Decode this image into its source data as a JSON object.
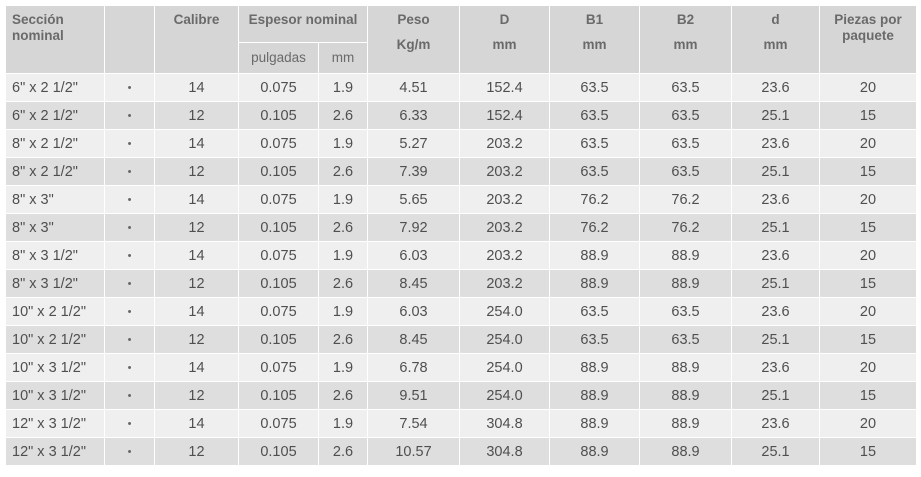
{
  "headers": {
    "seccion": "Sección nominal",
    "calibre": "Calibre",
    "espesor": "Espesor nominal",
    "pulgadas": "pulgadas",
    "mm": "mm",
    "peso": "Peso",
    "peso_unit": "Kg/m",
    "d_upper": "D",
    "d_upper_unit": "mm",
    "b1": "B1",
    "b1_unit": "mm",
    "b2": "B2",
    "b2_unit": "mm",
    "d_lower": "d",
    "d_lower_unit": "mm",
    "piezas": "Piezas por paquete"
  },
  "rows": [
    {
      "seccion": "6\" x 2 1/2\"",
      "marker": "•",
      "calibre": "14",
      "pulgadas": "0.075",
      "mm": "1.9",
      "peso": "4.51",
      "D": "152.4",
      "B1": "63.5",
      "B2": "63.5",
      "d": "23.6",
      "piezas": "20"
    },
    {
      "seccion": "6\" x 2 1/2\"",
      "marker": "•",
      "calibre": "12",
      "pulgadas": "0.105",
      "mm": "2.6",
      "peso": "6.33",
      "D": "152.4",
      "B1": "63.5",
      "B2": "63.5",
      "d": "25.1",
      "piezas": "15"
    },
    {
      "seccion": "8\" x 2 1/2\"",
      "marker": "•",
      "calibre": "14",
      "pulgadas": "0.075",
      "mm": "1.9",
      "peso": "5.27",
      "D": "203.2",
      "B1": "63.5",
      "B2": "63.5",
      "d": "23.6",
      "piezas": "20"
    },
    {
      "seccion": "8\" x 2 1/2\"",
      "marker": "•",
      "calibre": "12",
      "pulgadas": "0.105",
      "mm": "2.6",
      "peso": "7.39",
      "D": "203.2",
      "B1": "63.5",
      "B2": "63.5",
      "d": "25.1",
      "piezas": "15"
    },
    {
      "seccion": "8\" x 3\"",
      "marker": "•",
      "calibre": "14",
      "pulgadas": "0.075",
      "mm": "1.9",
      "peso": "5.65",
      "D": "203.2",
      "B1": "76.2",
      "B2": "76.2",
      "d": "23.6",
      "piezas": "20"
    },
    {
      "seccion": "8\" x 3\"",
      "marker": "•",
      "calibre": "12",
      "pulgadas": "0.105",
      "mm": "2.6",
      "peso": "7.92",
      "D": "203.2",
      "B1": "76.2",
      "B2": "76.2",
      "d": "25.1",
      "piezas": "15"
    },
    {
      "seccion": "8\" x 3 1/2\"",
      "marker": "•",
      "calibre": "14",
      "pulgadas": "0.075",
      "mm": "1.9",
      "peso": "6.03",
      "D": "203.2",
      "B1": "88.9",
      "B2": "88.9",
      "d": "23.6",
      "piezas": "20"
    },
    {
      "seccion": "8\" x 3 1/2\"",
      "marker": "•",
      "calibre": "12",
      "pulgadas": "0.105",
      "mm": "2.6",
      "peso": "8.45",
      "D": "203.2",
      "B1": "88.9",
      "B2": "88.9",
      "d": "25.1",
      "piezas": "15"
    },
    {
      "seccion": "10\" x 2 1/2\"",
      "marker": "•",
      "calibre": "14",
      "pulgadas": "0.075",
      "mm": "1.9",
      "peso": "6.03",
      "D": "254.0",
      "B1": "63.5",
      "B2": "63.5",
      "d": "23.6",
      "piezas": "20"
    },
    {
      "seccion": "10\" x 2 1/2\"",
      "marker": "•",
      "calibre": "12",
      "pulgadas": "0.105",
      "mm": "2.6",
      "peso": "8.45",
      "D": "254.0",
      "B1": "63.5",
      "B2": "63.5",
      "d": "25.1",
      "piezas": "15"
    },
    {
      "seccion": "10\" x 3 1/2\"",
      "marker": "•",
      "calibre": "14",
      "pulgadas": "0.075",
      "mm": "1.9",
      "peso": "6.78",
      "D": "254.0",
      "B1": "88.9",
      "B2": "88.9",
      "d": "23.6",
      "piezas": "20"
    },
    {
      "seccion": "10\" x 3 1/2\"",
      "marker": "•",
      "calibre": "12",
      "pulgadas": "0.105",
      "mm": "2.6",
      "peso": "9.51",
      "D": "254.0",
      "B1": "88.9",
      "B2": "88.9",
      "d": "25.1",
      "piezas": "15"
    },
    {
      "seccion": "12\" x 3 1/2\"",
      "marker": "•",
      "calibre": "14",
      "pulgadas": "0.075",
      "mm": "1.9",
      "peso": "7.54",
      "D": "304.8",
      "B1": "88.9",
      "B2": "88.9",
      "d": "23.6",
      "piezas": "20"
    },
    {
      "seccion": "12\" x 3 1/2\"",
      "marker": "•",
      "calibre": "12",
      "pulgadas": "0.105",
      "mm": "2.6",
      "peso": "10.57",
      "D": "304.8",
      "B1": "88.9",
      "B2": "88.9",
      "d": "25.1",
      "piezas": "15"
    }
  ]
}
